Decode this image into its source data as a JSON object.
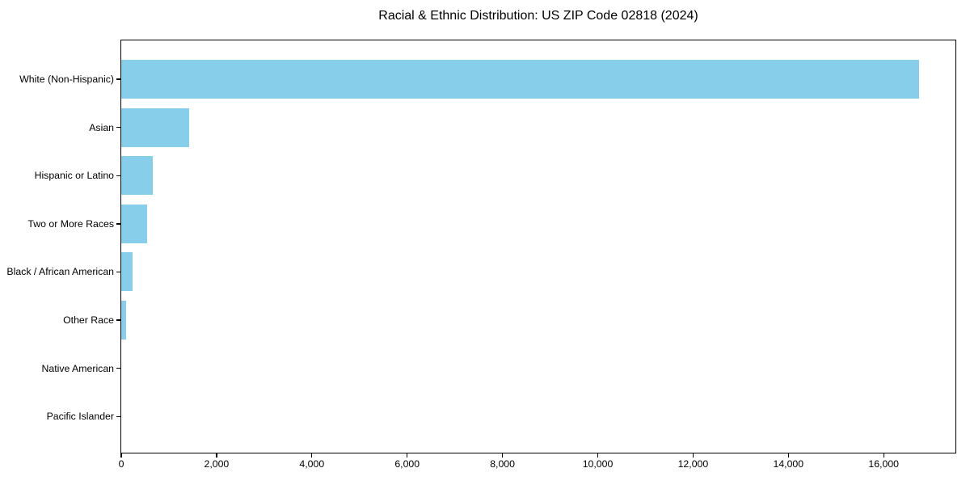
{
  "title": "Racial & Ethnic Distribution: US ZIP Code 02818 (2024)",
  "chart_data": {
    "type": "bar",
    "orientation": "horizontal",
    "title": "Racial & Ethnic Distribution: US ZIP Code 02818 (2024)",
    "categories": [
      "White (Non-Hispanic)",
      "Asian",
      "Hispanic or Latino",
      "Two or More Races",
      "Black / African American",
      "Other Race",
      "Native American",
      "Pacific Islander"
    ],
    "values": [
      16740,
      1430,
      670,
      550,
      245,
      100,
      0,
      0
    ],
    "xlabel": "",
    "ylabel": "",
    "xlim": [
      0,
      17540
    ],
    "x_ticks": [
      0,
      2000,
      4000,
      6000,
      8000,
      10000,
      12000,
      14000,
      16000
    ],
    "x_tick_labels": [
      "0",
      "2,000",
      "4,000",
      "6,000",
      "8,000",
      "10,000",
      "12,000",
      "14,000",
      "16,000"
    ],
    "bar_color": "#87ceeb",
    "background_color": "#ffffff",
    "axis_color": "#000000",
    "grid": false,
    "legend": false
  }
}
